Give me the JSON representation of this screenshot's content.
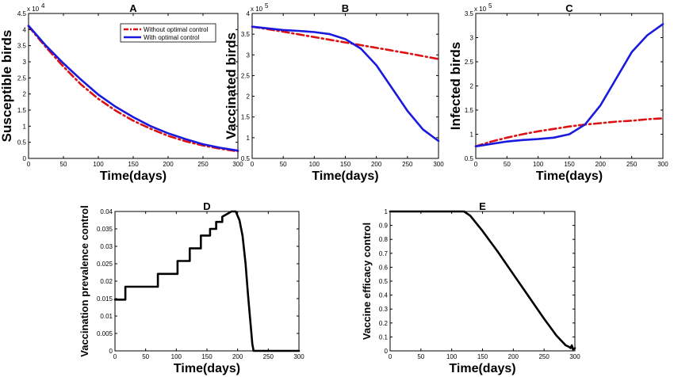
{
  "chart_data": [
    {
      "id": "A",
      "type": "line",
      "title": "A",
      "xlabel": "Time(days)",
      "ylabel": "Susceptible birds",
      "exponent": "4",
      "xlim": [
        0,
        300
      ],
      "ylim": [
        0,
        4.5
      ],
      "xticks": [
        0,
        50,
        100,
        150,
        200,
        250,
        300
      ],
      "yticks": [
        0,
        0.5,
        1,
        1.5,
        2,
        2.5,
        3,
        3.5,
        4,
        4.5
      ],
      "legend_position": "top-right",
      "series": [
        {
          "name": "Without optimal control",
          "style": "dashdot",
          "color": "#dd1111",
          "x": [
            0,
            25,
            50,
            75,
            100,
            125,
            150,
            175,
            200,
            225,
            250,
            275,
            300
          ],
          "y": [
            4.1,
            3.45,
            2.85,
            2.3,
            1.85,
            1.48,
            1.17,
            0.92,
            0.7,
            0.53,
            0.4,
            0.3,
            0.22
          ]
        },
        {
          "name": "With optimal control",
          "style": "solid",
          "color": "#1a1adf",
          "x": [
            0,
            25,
            50,
            75,
            100,
            125,
            150,
            175,
            200,
            225,
            250,
            275,
            300
          ],
          "y": [
            4.12,
            3.5,
            2.95,
            2.45,
            1.98,
            1.6,
            1.28,
            1.0,
            0.78,
            0.6,
            0.44,
            0.33,
            0.24
          ]
        }
      ]
    },
    {
      "id": "B",
      "type": "line",
      "title": "B",
      "xlabel": "Time(days)",
      "ylabel": "Vaccinated birds",
      "exponent": "5",
      "xlim": [
        0,
        300
      ],
      "ylim": [
        0.5,
        4
      ],
      "xticks": [
        0,
        50,
        100,
        150,
        200,
        250,
        300
      ],
      "yticks": [
        0.5,
        1,
        1.5,
        2,
        2.5,
        3,
        3.5,
        4
      ],
      "series": [
        {
          "name": "Without optimal control",
          "style": "dashdot",
          "color": "#dd1111",
          "x": [
            0,
            50,
            100,
            150,
            200,
            250,
            300
          ],
          "y": [
            3.68,
            3.56,
            3.43,
            3.3,
            3.17,
            3.04,
            2.9
          ]
        },
        {
          "name": "With optimal control",
          "style": "solid",
          "color": "#1a1adf",
          "x": [
            0,
            25,
            50,
            75,
            100,
            125,
            150,
            175,
            200,
            225,
            250,
            275,
            300
          ],
          "y": [
            3.68,
            3.64,
            3.6,
            3.58,
            3.55,
            3.5,
            3.38,
            3.15,
            2.75,
            2.2,
            1.65,
            1.2,
            0.92
          ]
        }
      ]
    },
    {
      "id": "C",
      "type": "line",
      "title": "C",
      "xlabel": "Time(days)",
      "ylabel": "Infected birds",
      "exponent": "5",
      "xlim": [
        0,
        300
      ],
      "ylim": [
        0.5,
        3.5
      ],
      "xticks": [
        0,
        50,
        100,
        150,
        200,
        250,
        300
      ],
      "yticks": [
        0.5,
        1,
        1.5,
        2,
        2.5,
        3,
        3.5
      ],
      "series": [
        {
          "name": "Without optimal control",
          "style": "dashdot",
          "color": "#dd1111",
          "x": [
            0,
            25,
            50,
            75,
            100,
            125,
            150,
            175,
            200,
            225,
            250,
            275,
            300
          ],
          "y": [
            0.75,
            0.85,
            0.93,
            1.0,
            1.06,
            1.11,
            1.16,
            1.2,
            1.23,
            1.26,
            1.28,
            1.31,
            1.33
          ]
        },
        {
          "name": "With optimal control",
          "style": "solid",
          "color": "#1a1adf",
          "x": [
            0,
            25,
            50,
            75,
            100,
            125,
            150,
            175,
            200,
            225,
            250,
            275,
            300
          ],
          "y": [
            0.75,
            0.8,
            0.85,
            0.88,
            0.9,
            0.93,
            1.0,
            1.2,
            1.6,
            2.15,
            2.7,
            3.05,
            3.28
          ]
        }
      ]
    },
    {
      "id": "D",
      "type": "line",
      "title": "D",
      "xlabel": "Time(days)",
      "ylabel": "Vaccination prevalence control",
      "xlim": [
        0,
        300
      ],
      "ylim": [
        0,
        0.04
      ],
      "xticks": [
        0,
        50,
        100,
        150,
        200,
        250,
        300
      ],
      "yticks": [
        0,
        0.005,
        0.01,
        0.015,
        0.02,
        0.025,
        0.03,
        0.035,
        0.04
      ],
      "series": [
        {
          "style": "solid",
          "color": "#000000",
          "x": [
            0,
            17,
            17,
            70,
            70,
            102,
            102,
            122,
            122,
            140,
            140,
            155,
            155,
            165,
            165,
            175,
            175,
            185,
            190,
            197,
            203,
            208,
            213,
            217,
            221,
            224,
            226,
            300
          ],
          "y": [
            0.0147,
            0.0147,
            0.0184,
            0.0184,
            0.0221,
            0.0221,
            0.0258,
            0.0258,
            0.0294,
            0.0294,
            0.0331,
            0.0331,
            0.035,
            0.035,
            0.037,
            0.037,
            0.0385,
            0.0395,
            0.04,
            0.04,
            0.0375,
            0.033,
            0.025,
            0.016,
            0.008,
            0.002,
            0,
            0
          ]
        }
      ]
    },
    {
      "id": "E",
      "type": "line",
      "title": "E",
      "xlabel": "Time(days)",
      "ylabel": "Vaccine efficacy control",
      "xlim": [
        0,
        300
      ],
      "ylim": [
        0,
        1
      ],
      "xticks": [
        0,
        50,
        100,
        150,
        200,
        250,
        300
      ],
      "yticks": [
        0,
        0.1,
        0.2,
        0.3,
        0.4,
        0.5,
        0.6,
        0.7,
        0.8,
        0.9,
        1
      ],
      "series": [
        {
          "style": "solid",
          "color": "#000000",
          "x": [
            0,
            120,
            130,
            150,
            175,
            200,
            225,
            250,
            270,
            285,
            290,
            293,
            295,
            297,
            300
          ],
          "y": [
            1,
            1,
            0.97,
            0.86,
            0.71,
            0.55,
            0.39,
            0.23,
            0.11,
            0.04,
            0.03,
            0.02,
            0.04,
            0.01,
            0.02
          ]
        }
      ]
    }
  ]
}
